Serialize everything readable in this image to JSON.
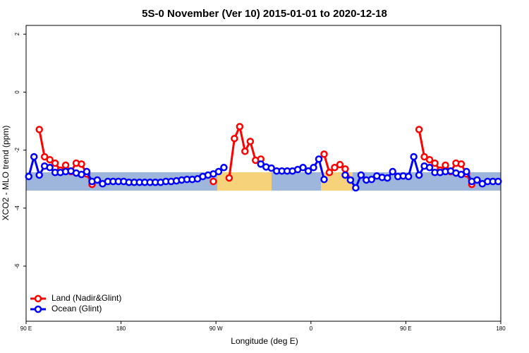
{
  "chart_data": {
    "type": "line",
    "title": "5S-0 November (Ver 10)   2015-01-01 to 2020-12-18",
    "x_label": "Longitude (deg E)",
    "y_label": "XCO2 - MLO trend (ppm)",
    "x": [
      92.5,
      97.5,
      102.5,
      107.5,
      112.5,
      117.5,
      122.5,
      127.5,
      132.5,
      137.5,
      142.5,
      147.5,
      152.5,
      157.5,
      162.5,
      167.5,
      172.5,
      177.5,
      182.5,
      187.5,
      192.5,
      197.5,
      202.5,
      207.5,
      212.5,
      217.5,
      222.5,
      227.5,
      232.5,
      237.5,
      242.5,
      247.5,
      252.5,
      257.5,
      262.5,
      267.5,
      272.5,
      277.5,
      282.5,
      287.5,
      292.5,
      297.5,
      302.5,
      307.5,
      312.5,
      317.5,
      322.5,
      327.5,
      332.5,
      337.5,
      342.5,
      347.5,
      352.5,
      357.5,
      362.5,
      367.5,
      372.5,
      377.5,
      382.5,
      387.5,
      392.5,
      397.5,
      402.5,
      407.5,
      412.5,
      417.5,
      422.5,
      427.5,
      432.5,
      437.5,
      442.5,
      447.5,
      452.5,
      457.5,
      462.5,
      467.5,
      472.5,
      477.5,
      482.5,
      487.5,
      492.5,
      497.5,
      502.5,
      507.5,
      512.5,
      517.5,
      522.5,
      527.5,
      532.5,
      537.5
    ],
    "series": [
      {
        "name": "Land (Nadir&Glint)",
        "color": "#ff0000",
        "values": [
          null,
          null,
          -1.29,
          -2.23,
          -2.33,
          -2.45,
          -2.69,
          -2.52,
          -2.74,
          -2.45,
          -2.48,
          -2.82,
          -3.18,
          null,
          null,
          null,
          null,
          null,
          null,
          null,
          null,
          null,
          null,
          null,
          null,
          null,
          null,
          null,
          null,
          null,
          null,
          null,
          null,
          null,
          null,
          -3.08,
          null,
          null,
          -2.96,
          -1.6,
          -1.19,
          -2.04,
          -1.7,
          -2.35,
          -2.31,
          null,
          null,
          null,
          null,
          null,
          null,
          null,
          null,
          null,
          null,
          null,
          -2.14,
          -2.77,
          -2.6,
          -2.5,
          -2.65,
          -3.03,
          null,
          null,
          null,
          null,
          null,
          null,
          null,
          null,
          null,
          null,
          null,
          null,
          -1.29,
          -2.23,
          -2.33,
          -2.45,
          -2.69,
          -2.52,
          -2.74,
          -2.45,
          -2.48,
          -2.82,
          -3.18,
          null,
          null,
          null,
          null,
          null
        ]
      },
      {
        "name": "Ocean (Glint)",
        "color": "#0000ff",
        "values": [
          -2.91,
          -2.23,
          -2.86,
          -2.55,
          -2.6,
          -2.77,
          -2.77,
          -2.74,
          -2.72,
          -2.79,
          -2.84,
          -2.74,
          -3.08,
          -3.03,
          -3.16,
          -3.08,
          -3.08,
          -3.08,
          -3.08,
          -3.11,
          -3.11,
          -3.11,
          -3.11,
          -3.11,
          -3.11,
          -3.11,
          -3.08,
          -3.08,
          -3.06,
          -3.03,
          -3.01,
          -3.01,
          -2.99,
          -2.91,
          -2.86,
          -2.82,
          -2.74,
          -2.6,
          null,
          null,
          null,
          null,
          null,
          null,
          -2.48,
          -2.58,
          -2.62,
          -2.72,
          -2.72,
          -2.72,
          -2.72,
          -2.67,
          -2.6,
          -2.72,
          -2.6,
          -2.31,
          -3.01,
          null,
          null,
          null,
          -2.86,
          -3.03,
          -3.3,
          -2.86,
          -3.03,
          -3.01,
          -2.89,
          -2.94,
          -2.96,
          -2.74,
          -2.91,
          -2.89,
          -2.91,
          -2.23,
          -2.86,
          -2.55,
          -2.6,
          -2.77,
          -2.77,
          -2.74,
          -2.72,
          -2.79,
          -2.84,
          -2.74,
          -3.08,
          -3.03,
          -3.16,
          -3.08,
          -3.08,
          -3.08
        ]
      }
    ],
    "xlim": [
      90,
      540
    ],
    "xticks": [
      {
        "value": 90,
        "label": "90 E"
      },
      {
        "value": 180,
        "label": "180"
      },
      {
        "value": 270,
        "label": "90 W"
      },
      {
        "value": 360,
        "label": "0"
      },
      {
        "value": 450,
        "label": "90 E"
      },
      {
        "value": 540,
        "label": "180"
      }
    ],
    "ylim": [
      -7.9,
      2.3
    ],
    "yticks": [
      2,
      0,
      -2,
      -4,
      -6
    ],
    "legend": "bottom-left"
  }
}
